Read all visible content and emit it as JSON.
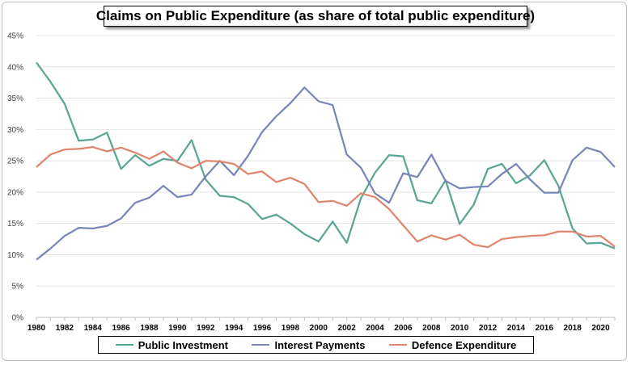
{
  "chart_data": {
    "type": "line",
    "title": "Claims on Public Expenditure (as share of total public expenditure)",
    "x": [
      1980,
      1981,
      1982,
      1983,
      1984,
      1985,
      1986,
      1987,
      1988,
      1989,
      1990,
      1991,
      1992,
      1993,
      1994,
      1995,
      1996,
      1997,
      1998,
      1999,
      2000,
      2001,
      2002,
      2003,
      2004,
      2005,
      2006,
      2007,
      2008,
      2009,
      2010,
      2011,
      2012,
      2013,
      2014,
      2015,
      2016,
      2017,
      2018,
      2019,
      2020,
      2021
    ],
    "x_tick_labels": [
      "1980",
      "1982",
      "1984",
      "1986",
      "1988",
      "1990",
      "1992",
      "1994",
      "1996",
      "1998",
      "2000",
      "2002",
      "2004",
      "2006",
      "2008",
      "2010",
      "2012",
      "2014",
      "2016",
      "2018",
      "2020"
    ],
    "y_tick_labels": [
      "0%",
      "5%",
      "10%",
      "15%",
      "20%",
      "25%",
      "30%",
      "35%",
      "40%",
      "45%"
    ],
    "ylim": [
      0,
      45
    ],
    "xlabel": "",
    "ylabel": "",
    "grid": "horizontal",
    "legend_position": "bottom",
    "series": [
      {
        "name": "Public Investment",
        "color": "#5ba596",
        "values": [
          40.7,
          37.6,
          34.1,
          28.2,
          28.4,
          29.5,
          23.7,
          25.9,
          24.2,
          25.3,
          25.0,
          28.3,
          22.0,
          19.4,
          19.2,
          18.1,
          15.7,
          16.4,
          15.0,
          13.3,
          12.1,
          15.3,
          11.9,
          19.0,
          23.1,
          25.9,
          25.7,
          18.7,
          18.2,
          21.9,
          14.9,
          18.0,
          23.7,
          24.5,
          21.4,
          22.7,
          25.1,
          21.0,
          14.2,
          11.8,
          11.9,
          11.0
        ]
      },
      {
        "name": "Interest Payments",
        "color": "#7a86b8",
        "values": [
          9.2,
          11.0,
          13.0,
          14.3,
          14.2,
          14.6,
          15.8,
          18.3,
          19.1,
          21.0,
          19.2,
          19.6,
          22.5,
          25.0,
          22.7,
          25.8,
          29.6,
          32.1,
          34.2,
          36.7,
          34.5,
          33.9,
          26.0,
          23.9,
          19.8,
          18.3,
          23.0,
          22.4,
          26.0,
          21.8,
          20.6,
          20.8,
          20.9,
          22.9,
          24.5,
          22.0,
          19.9,
          19.9,
          25.1,
          27.1,
          26.4,
          24.0
        ]
      },
      {
        "name": "Defence Expenditure",
        "color": "#e0866f",
        "values": [
          24.0,
          26.0,
          26.8,
          26.9,
          27.2,
          26.5,
          27.1,
          26.3,
          25.3,
          26.5,
          24.7,
          23.8,
          25.0,
          24.9,
          24.5,
          22.9,
          23.3,
          21.6,
          22.3,
          21.3,
          18.4,
          18.6,
          17.8,
          19.8,
          19.2,
          17.3,
          14.7,
          12.1,
          13.1,
          12.4,
          13.2,
          11.6,
          11.2,
          12.5,
          12.8,
          13.0,
          13.1,
          13.7,
          13.7,
          12.9,
          13.0,
          11.3
        ]
      }
    ]
  }
}
